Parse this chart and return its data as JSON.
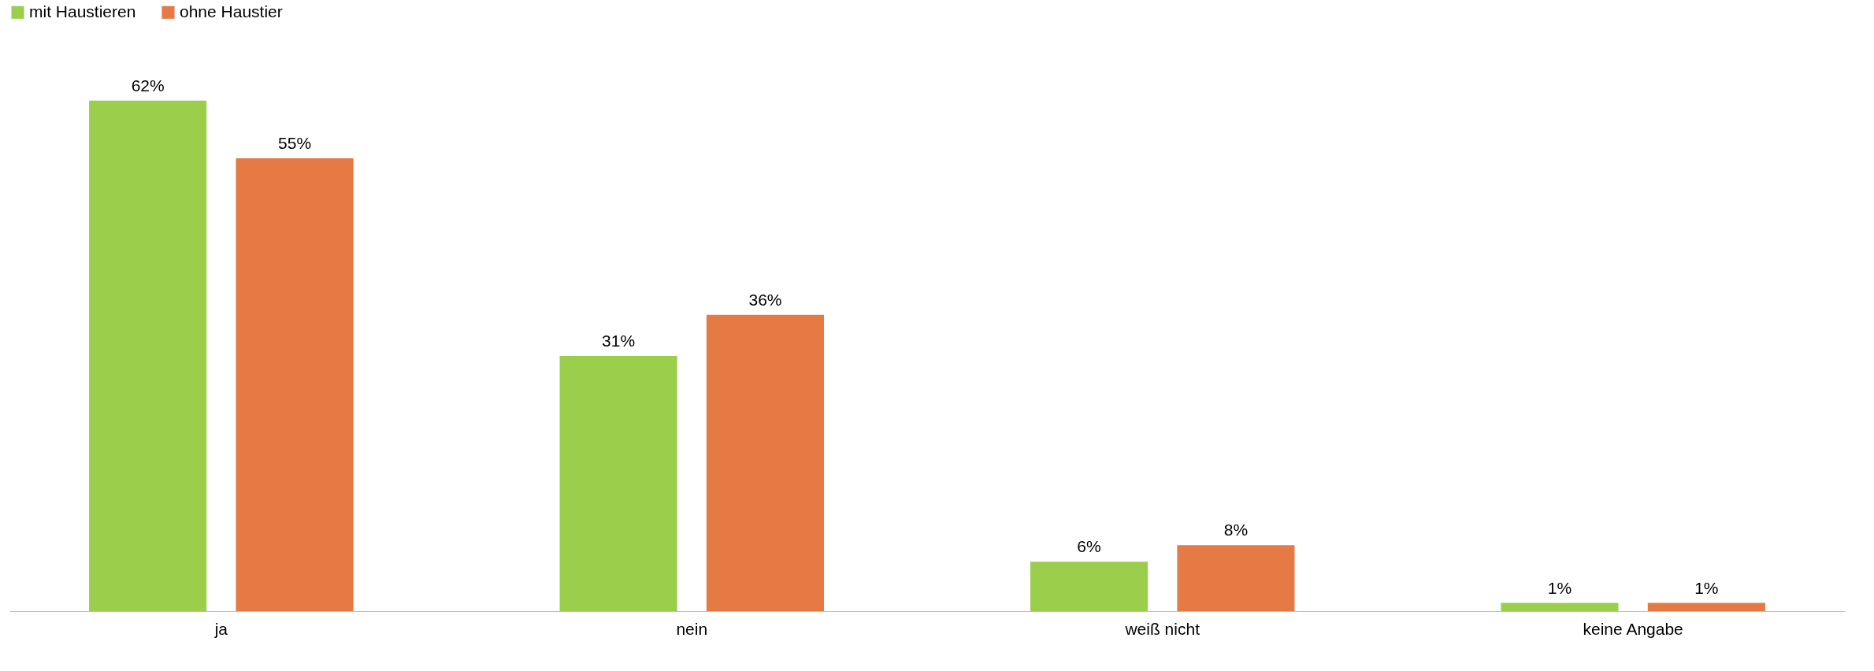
{
  "chart_data": {
    "type": "bar",
    "categories": [
      "ja",
      "nein",
      "weiß nicht",
      "keine Angabe"
    ],
    "legend": "top",
    "grid": false,
    "series": [
      {
        "name": "mit Haustieren",
        "color": "#9bce4a",
        "values": [
          62,
          31,
          6,
          1
        ],
        "value_labels": [
          "62%",
          "31%",
          "6%",
          "1%"
        ]
      },
      {
        "name": "ohne Haustier",
        "color": "#e57a45",
        "values": [
          55,
          36,
          8,
          1
        ],
        "value_labels": [
          "55%",
          "36%",
          "8%",
          "1%"
        ]
      }
    ]
  }
}
